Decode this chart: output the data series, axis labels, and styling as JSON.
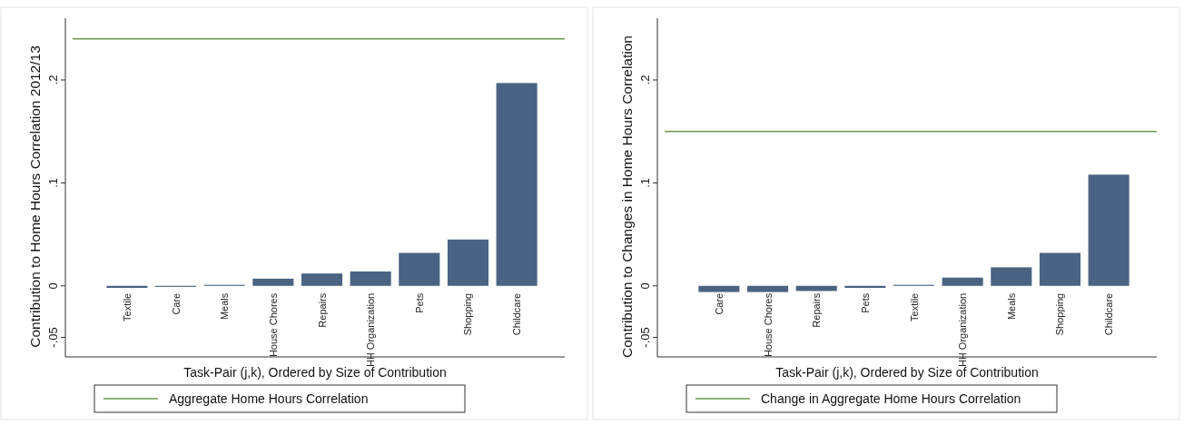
{
  "chart_data": [
    {
      "type": "bar",
      "ylabel": "Contribution to Home Hours Correlation 2012/13",
      "xlabel": "Task-Pair (j,k), Ordered by Size of Contribution",
      "categories": [
        "Textile",
        "Care",
        "Meals",
        "House Chores",
        "Repairs",
        "HH Organization",
        "Pets",
        "Shopping",
        "Childcare"
      ],
      "values": [
        -0.002,
        -0.001,
        0.001,
        0.007,
        0.012,
        0.014,
        0.032,
        0.045,
        0.197
      ],
      "color": "#4a6382",
      "ylim": [
        -0.069,
        0.26
      ],
      "yticks": [
        {
          "value": -0.05,
          "label": "-.05"
        },
        0,
        {
          "value": 0.1,
          "label": ".1"
        },
        {
          "value": 0.2,
          "label": ".2"
        }
      ],
      "ref_lines": [
        {
          "axis": "y",
          "value": 0.24,
          "label": "Aggregate Home Hours Correlation",
          "color": "#6a9a4a"
        }
      ],
      "legend": "bottom"
    },
    {
      "type": "bar",
      "ylabel": "Contribution to Changes in Home Hours Correlation",
      "xlabel": "Task-Pair (j,k), Ordered by Size of Contribution",
      "categories": [
        "Care",
        "House Chores",
        "Repairs",
        "Pets",
        "Textile",
        "HH Organization",
        "Meals",
        "Shopping",
        "Childcare"
      ],
      "values": [
        -0.006,
        -0.006,
        -0.005,
        -0.002,
        0.001,
        0.008,
        0.018,
        0.032,
        0.108
      ],
      "color": "#4a6382",
      "ylim": [
        -0.069,
        0.26
      ],
      "yticks": [
        {
          "value": -0.05,
          "label": "-.05"
        },
        0,
        {
          "value": 0.1,
          "label": ".1"
        },
        {
          "value": 0.2,
          "label": ".2"
        }
      ],
      "ref_lines": [
        {
          "axis": "y",
          "value": 0.15,
          "label": "Change in Aggregate Home Hours Correlation",
          "color": "#6a9a4a"
        }
      ],
      "legend": "bottom"
    }
  ]
}
